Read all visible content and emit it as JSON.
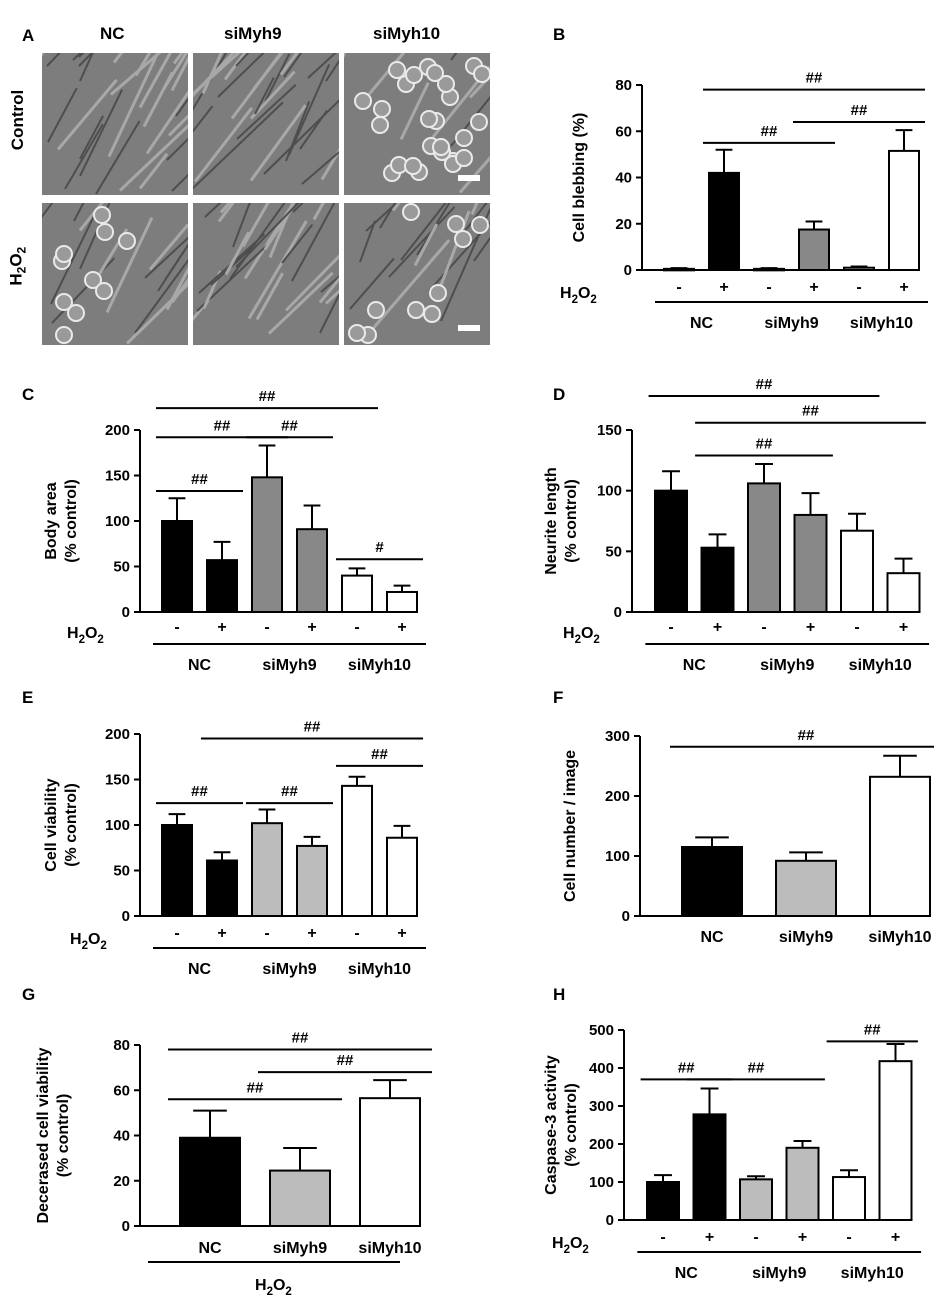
{
  "panel_a": {
    "letter": "A",
    "columns": [
      "NC",
      "siMyh9",
      "siMyh10"
    ],
    "rows": [
      "Control",
      "H2O2"
    ]
  },
  "chart_data": [
    {
      "panel": "B",
      "type": "bar",
      "ylabel": "Cell blebbing (%)",
      "ylim": [
        0,
        80
      ],
      "yticks": [
        0,
        20,
        40,
        60,
        80
      ],
      "treatment_label": "H2O2",
      "treatment": [
        "-",
        "+",
        "-",
        "+",
        "-",
        "+"
      ],
      "groups": [
        "NC",
        "siMyh9",
        "siMyh10"
      ],
      "fills": [
        "#000000",
        "#000000",
        "#888888",
        "#888888",
        "#ffffff",
        "#ffffff"
      ],
      "values": [
        0.5,
        42,
        0.5,
        17.5,
        1,
        51.5
      ],
      "errors": [
        0.3,
        10,
        0.3,
        3.5,
        0.5,
        9
      ],
      "significance": [
        {
          "from": 1,
          "to": 3,
          "y": 55,
          "label": "##"
        },
        {
          "from": 3,
          "to": 5,
          "y": 64,
          "label": "##"
        },
        {
          "from": 1,
          "to": 5,
          "y": 78,
          "label": "##"
        }
      ]
    },
    {
      "panel": "C",
      "type": "bar",
      "ylabel": "Body area\n(% control)",
      "ylim": [
        0,
        200
      ],
      "yticks": [
        0,
        50,
        100,
        150,
        200
      ],
      "treatment_label": "H2O2",
      "treatment": [
        "-",
        "+",
        "-",
        "+",
        "-",
        "+"
      ],
      "groups": [
        "NC",
        "siMyh9",
        "siMyh10"
      ],
      "fills": [
        "#000000",
        "#000000",
        "#888888",
        "#888888",
        "#ffffff",
        "#ffffff"
      ],
      "values": [
        100,
        57,
        148,
        91,
        40,
        22
      ],
      "errors": [
        25,
        20,
        35,
        26,
        8,
        7
      ],
      "significance": [
        {
          "from": 0,
          "to": 1,
          "y": 133,
          "label": "##"
        },
        {
          "from": 0,
          "to": 2,
          "y": 192,
          "label": "##"
        },
        {
          "from": 2,
          "to": 3,
          "y": 192,
          "label": "##"
        },
        {
          "from": 0,
          "to": 4,
          "y": 224,
          "label": "##"
        },
        {
          "from": 4,
          "to": 5,
          "y": 58,
          "label": "#"
        }
      ]
    },
    {
      "panel": "D",
      "type": "bar",
      "ylabel": "Neurite length\n(% control)",
      "ylim": [
        0,
        150
      ],
      "yticks": [
        0,
        50,
        100,
        150
      ],
      "treatment_label": "H2O2",
      "treatment": [
        "-",
        "+",
        "-",
        "+",
        "-",
        "+"
      ],
      "groups": [
        "NC",
        "siMyh9",
        "siMyh10"
      ],
      "fills": [
        "#000000",
        "#000000",
        "#888888",
        "#888888",
        "#ffffff",
        "#ffffff"
      ],
      "values": [
        100,
        53,
        106,
        80,
        67,
        32
      ],
      "errors": [
        16,
        11,
        16,
        18,
        14,
        12
      ],
      "significance": [
        {
          "from": 1,
          "to": 3,
          "y": 129,
          "label": "##"
        },
        {
          "from": 1,
          "to": 5,
          "y": 156,
          "label": "##"
        },
        {
          "from": 0,
          "to": 4,
          "y": 178,
          "label": "##"
        }
      ]
    },
    {
      "panel": "E",
      "type": "bar",
      "ylabel": "Cell viability\n(% control)",
      "ylim": [
        0,
        200
      ],
      "yticks": [
        0,
        50,
        100,
        150,
        200
      ],
      "treatment_label": "H2O2",
      "treatment": [
        "-",
        "+",
        "-",
        "+",
        "-",
        "+"
      ],
      "groups": [
        "NC",
        "siMyh9",
        "siMyh10"
      ],
      "fills": [
        "#000000",
        "#000000",
        "#bcbcbc",
        "#bcbcbc",
        "#ffffff",
        "#ffffff"
      ],
      "values": [
        100,
        61,
        102,
        77,
        143,
        86
      ],
      "errors": [
        12,
        9,
        15,
        10,
        10,
        13
      ],
      "significance": [
        {
          "from": 0,
          "to": 1,
          "y": 124,
          "label": "##"
        },
        {
          "from": 2,
          "to": 3,
          "y": 124,
          "label": "##"
        },
        {
          "from": 4,
          "to": 5,
          "y": 165,
          "label": "##"
        },
        {
          "from": 1,
          "to": 5,
          "y": 195,
          "label": "##"
        }
      ]
    },
    {
      "panel": "F",
      "type": "bar",
      "ylabel": "Cell number / image",
      "ylim": [
        0,
        300
      ],
      "yticks": [
        0,
        100,
        200,
        300
      ],
      "categories": [
        "NC",
        "siMyh9",
        "siMyh10"
      ],
      "fills": [
        "#000000",
        "#bcbcbc",
        "#ffffff"
      ],
      "values": [
        115,
        92,
        232
      ],
      "errors": [
        16,
        14,
        35
      ],
      "significance": [
        {
          "from": 0,
          "to": 2,
          "y": 282,
          "label": "##"
        }
      ]
    },
    {
      "panel": "G",
      "type": "bar",
      "ylabel": "Decerased cell viability\n(% control)",
      "ylim": [
        0,
        80
      ],
      "yticks": [
        0,
        20,
        40,
        60,
        80
      ],
      "categories": [
        "NC",
        "siMyh9",
        "siMyh10"
      ],
      "bottom_label": "H2O2",
      "fills": [
        "#000000",
        "#bcbcbc",
        "#ffffff"
      ],
      "values": [
        39,
        24.5,
        56.5
      ],
      "errors": [
        12,
        10,
        8
      ],
      "significance": [
        {
          "from": 0,
          "to": 1,
          "y": 56,
          "label": "##"
        },
        {
          "from": 1,
          "to": 2,
          "y": 68,
          "label": "##"
        },
        {
          "from": 0,
          "to": 2,
          "y": 78,
          "label": "##"
        }
      ]
    },
    {
      "panel": "H",
      "type": "bar",
      "ylabel": "Caspase-3 activity\n(% control)",
      "ylim": [
        0,
        500
      ],
      "yticks": [
        0,
        100,
        200,
        300,
        400,
        500
      ],
      "treatment_label": "H2O2",
      "treatment": [
        "-",
        "+",
        "-",
        "+",
        "-",
        "+"
      ],
      "groups": [
        "NC",
        "siMyh9",
        "siMyh10"
      ],
      "fills": [
        "#000000",
        "#000000",
        "#bcbcbc",
        "#bcbcbc",
        "#ffffff",
        "#ffffff"
      ],
      "values": [
        100,
        278,
        107,
        190,
        113,
        418
      ],
      "errors": [
        18,
        68,
        8,
        18,
        18,
        45
      ],
      "significance": [
        {
          "from": 0,
          "to": 1,
          "y": 370,
          "label": "##"
        },
        {
          "from": 1,
          "to": 3,
          "y": 370,
          "label": "##"
        },
        {
          "from": 4,
          "to": 5,
          "y": 470,
          "label": "##"
        }
      ]
    }
  ]
}
